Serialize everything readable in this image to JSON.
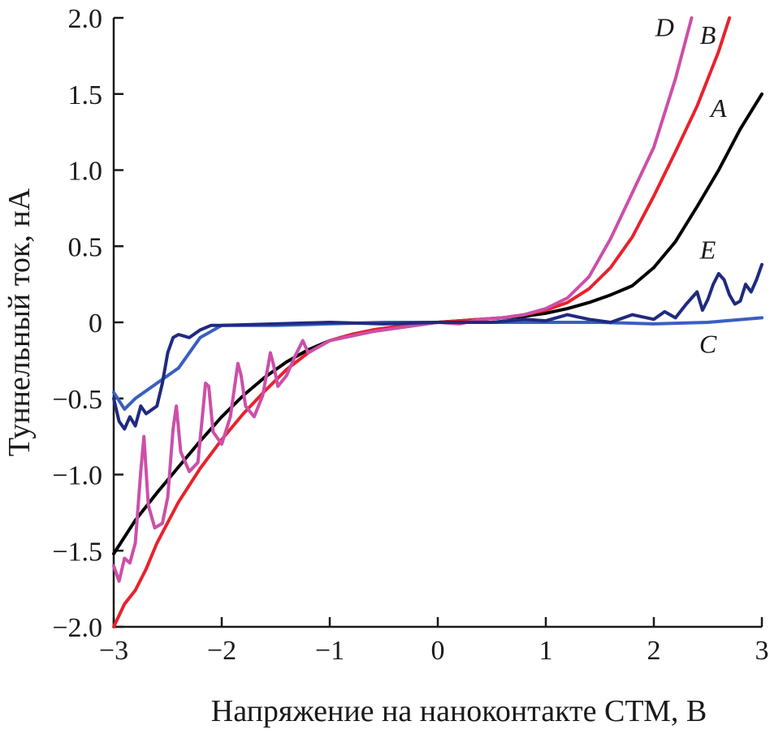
{
  "chart_data": {
    "type": "line",
    "title": "",
    "xlabel": "Напряжение на наноконтакте СТМ, В",
    "ylabel": "Туннельный ток, нА",
    "xlim": [
      -3,
      3
    ],
    "ylim": [
      -2.0,
      2.0
    ],
    "grid": false,
    "x_ticks": [
      {
        "value": -3,
        "label": "−3"
      },
      {
        "value": -2,
        "label": "−2"
      },
      {
        "value": -1,
        "label": "−1"
      },
      {
        "value": 0,
        "label": "0"
      },
      {
        "value": 1,
        "label": "1"
      },
      {
        "value": 2,
        "label": "2"
      },
      {
        "value": 3,
        "label": "3"
      }
    ],
    "y_ticks": [
      {
        "value": -2.0,
        "label": "−2.0"
      },
      {
        "value": -1.5,
        "label": "−1.5"
      },
      {
        "value": -1.0,
        "label": "−1.0"
      },
      {
        "value": -0.5,
        "label": "−0.5"
      },
      {
        "value": 0,
        "label": "0"
      },
      {
        "value": 0.5,
        "label": "0.5"
      },
      {
        "value": 1.0,
        "label": "1.0"
      },
      {
        "value": 1.5,
        "label": "1.5"
      },
      {
        "value": 2.0,
        "label": "2.0"
      }
    ],
    "series": [
      {
        "name": "A",
        "color": "#000000",
        "label_at": [
          2.6,
          1.35
        ],
        "x": [
          -3.0,
          -2.8,
          -2.6,
          -2.4,
          -2.2,
          -2.0,
          -1.8,
          -1.6,
          -1.4,
          -1.2,
          -1.0,
          -0.8,
          -0.6,
          -0.4,
          -0.2,
          0.0,
          0.2,
          0.4,
          0.6,
          0.8,
          1.0,
          1.2,
          1.4,
          1.6,
          1.8,
          2.0,
          2.2,
          2.4,
          2.6,
          2.8,
          3.0
        ],
        "y": [
          -1.52,
          -1.3,
          -1.12,
          -0.95,
          -0.78,
          -0.62,
          -0.48,
          -0.36,
          -0.26,
          -0.18,
          -0.12,
          -0.08,
          -0.05,
          -0.03,
          -0.01,
          0.0,
          0.01,
          0.02,
          0.03,
          0.04,
          0.06,
          0.09,
          0.13,
          0.18,
          0.24,
          0.36,
          0.53,
          0.76,
          1.0,
          1.27,
          1.5
        ]
      },
      {
        "name": "B",
        "color": "#e8222c",
        "label_at": [
          2.5,
          1.83
        ],
        "x": [
          -3.0,
          -2.9,
          -2.8,
          -2.7,
          -2.6,
          -2.4,
          -2.2,
          -2.0,
          -1.8,
          -1.6,
          -1.4,
          -1.2,
          -1.0,
          -0.8,
          -0.6,
          -0.4,
          -0.2,
          0.0,
          0.2,
          0.4,
          0.6,
          0.8,
          1.0,
          1.2,
          1.4,
          1.6,
          1.8,
          2.0,
          2.2,
          2.4,
          2.6,
          2.7
        ],
        "y": [
          -2.0,
          -1.85,
          -1.76,
          -1.62,
          -1.45,
          -1.18,
          -0.96,
          -0.77,
          -0.6,
          -0.45,
          -0.31,
          -0.2,
          -0.12,
          -0.08,
          -0.05,
          -0.03,
          -0.01,
          0.0,
          0.01,
          0.02,
          0.03,
          0.05,
          0.08,
          0.13,
          0.22,
          0.36,
          0.56,
          0.83,
          1.12,
          1.42,
          1.78,
          2.0
        ]
      },
      {
        "name": "C",
        "color": "#3a5fbf",
        "label_at": [
          2.5,
          -0.2
        ],
        "x": [
          -3.0,
          -2.9,
          -2.8,
          -2.6,
          -2.4,
          -2.2,
          -2.0,
          -1.5,
          -1.0,
          -0.5,
          0.0,
          0.5,
          1.0,
          1.5,
          2.0,
          2.5,
          3.0
        ],
        "y": [
          -0.46,
          -0.57,
          -0.5,
          -0.4,
          -0.3,
          -0.1,
          -0.02,
          -0.02,
          -0.01,
          0.0,
          0.0,
          0.0,
          0.0,
          0.0,
          -0.01,
          0.0,
          0.03
        ]
      },
      {
        "name": "D",
        "color": "#cc4fa8",
        "label_at": [
          2.1,
          1.88
        ],
        "x": [
          -3.0,
          -2.95,
          -2.9,
          -2.85,
          -2.8,
          -2.75,
          -2.72,
          -2.68,
          -2.62,
          -2.55,
          -2.5,
          -2.45,
          -2.42,
          -2.38,
          -2.3,
          -2.22,
          -2.15,
          -2.12,
          -2.08,
          -2.0,
          -1.92,
          -1.85,
          -1.82,
          -1.78,
          -1.7,
          -1.62,
          -1.55,
          -1.52,
          -1.48,
          -1.4,
          -1.32,
          -1.25,
          -1.2,
          -1.0,
          -0.8,
          -0.6,
          -0.4,
          -0.2,
          0.0,
          0.2,
          0.4,
          0.6,
          0.8,
          1.0,
          1.2,
          1.4,
          1.6,
          1.8,
          2.0,
          2.2,
          2.35
        ],
        "y": [
          -1.6,
          -1.7,
          -1.55,
          -1.58,
          -1.45,
          -0.98,
          -0.75,
          -1.2,
          -1.35,
          -1.32,
          -1.15,
          -0.7,
          -0.55,
          -0.85,
          -0.98,
          -0.92,
          -0.4,
          -0.42,
          -0.72,
          -0.8,
          -0.62,
          -0.27,
          -0.35,
          -0.55,
          -0.62,
          -0.48,
          -0.2,
          -0.28,
          -0.42,
          -0.35,
          -0.22,
          -0.12,
          -0.2,
          -0.12,
          -0.09,
          -0.06,
          -0.04,
          -0.02,
          0.0,
          -0.01,
          0.02,
          0.03,
          0.05,
          0.09,
          0.16,
          0.3,
          0.55,
          0.85,
          1.15,
          1.6,
          2.0
        ]
      },
      {
        "name": "E",
        "color": "#1f2a80",
        "label_at": [
          2.5,
          0.42
        ],
        "x": [
          -3.0,
          -2.95,
          -2.9,
          -2.85,
          -2.8,
          -2.75,
          -2.7,
          -2.6,
          -2.55,
          -2.5,
          -2.45,
          -2.4,
          -2.3,
          -2.2,
          -2.1,
          -2.0,
          -1.5,
          -1.0,
          -0.5,
          0.0,
          0.5,
          0.8,
          1.0,
          1.2,
          1.4,
          1.6,
          1.8,
          2.0,
          2.1,
          2.2,
          2.3,
          2.4,
          2.45,
          2.5,
          2.55,
          2.6,
          2.65,
          2.7,
          2.75,
          2.8,
          2.85,
          2.9,
          2.95,
          3.0
        ],
        "y": [
          -0.5,
          -0.65,
          -0.7,
          -0.62,
          -0.68,
          -0.55,
          -0.6,
          -0.55,
          -0.4,
          -0.2,
          -0.1,
          -0.08,
          -0.1,
          -0.05,
          -0.02,
          -0.02,
          -0.01,
          0.0,
          -0.01,
          0.0,
          0.0,
          0.02,
          0.01,
          0.05,
          0.02,
          0.0,
          0.05,
          0.02,
          0.07,
          0.03,
          0.12,
          0.2,
          0.08,
          0.15,
          0.25,
          0.32,
          0.28,
          0.18,
          0.12,
          0.14,
          0.25,
          0.2,
          0.28,
          0.38
        ]
      }
    ]
  }
}
